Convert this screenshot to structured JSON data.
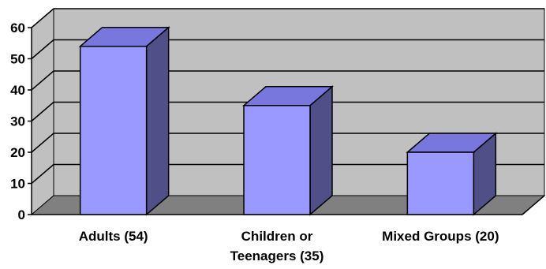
{
  "chart_data": {
    "type": "bar",
    "style": "3d-column",
    "categories": [
      "Adults (54)",
      "Children or Teenagers (35)",
      "Mixed Groups (20)"
    ],
    "category_lines": [
      [
        "Adults (54)"
      ],
      [
        "Children or",
        "Teenagers (35)"
      ],
      [
        "Mixed Groups (20)"
      ]
    ],
    "values": [
      54,
      35,
      20
    ],
    "ylim": [
      0,
      60
    ],
    "yticks": [
      0,
      10,
      20,
      30,
      40,
      50,
      60
    ],
    "title": "",
    "xlabel": "",
    "ylabel": "",
    "grid": true,
    "legend": "none",
    "colors": {
      "bar_front": "#9999ff",
      "bar_top": "#7777dd",
      "bar_side": "#505088",
      "back_wall": "#c0c0c0",
      "floor": "#808080",
      "outline": "#000000"
    }
  }
}
